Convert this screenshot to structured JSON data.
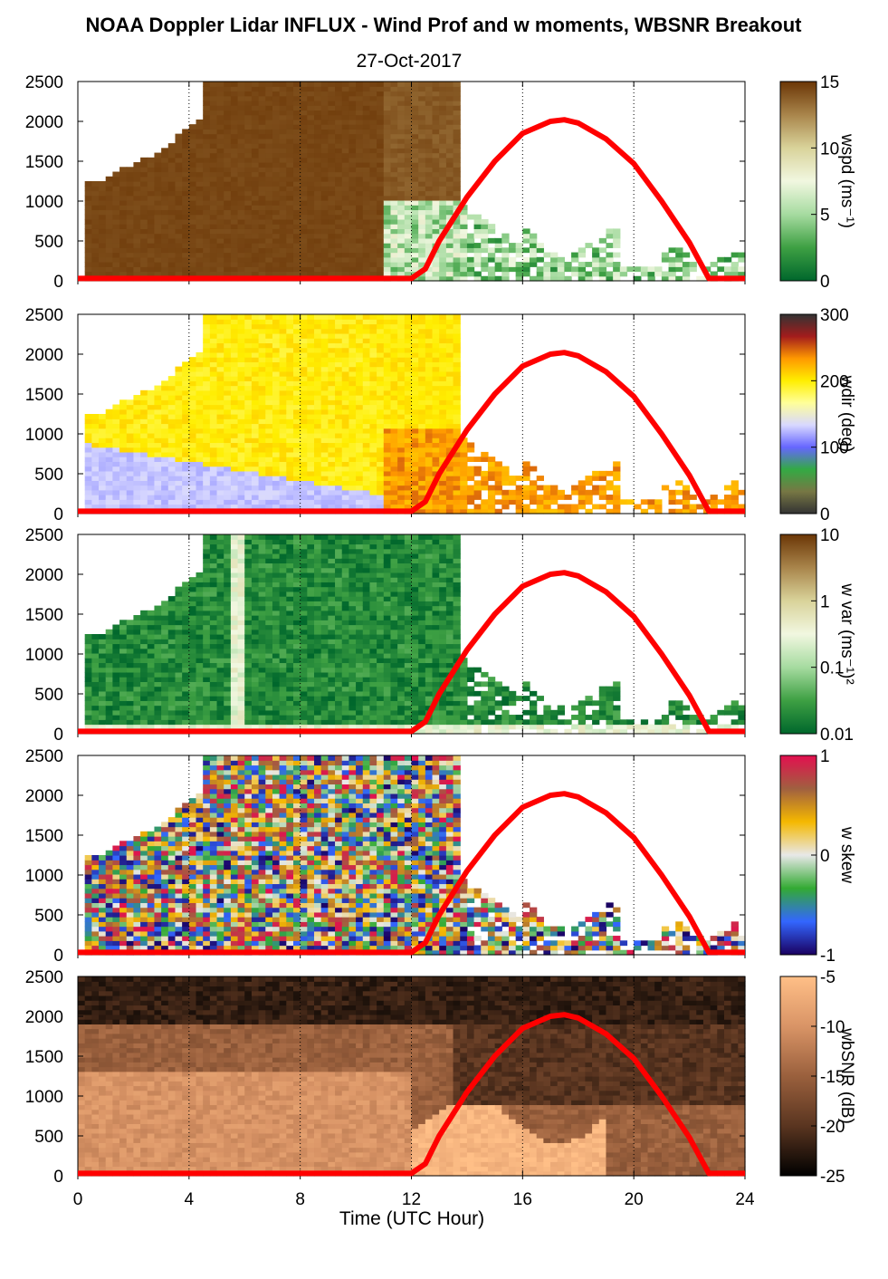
{
  "title": "NOAA Doppler Lidar INFLUX - Wind Prof and w moments, WBSNR Breakout",
  "subtitle": "27-Oct-2017",
  "colors": {
    "sun_curve": "#ff0000"
  },
  "chart_data": {
    "type": "heatmap",
    "xlabel": "Time (UTC Hour)",
    "xlim": [
      0,
      24
    ],
    "x_ticks": [
      "0",
      "4",
      "8",
      "12",
      "16",
      "20",
      "24"
    ],
    "ylim": [
      0,
      2500
    ],
    "y_ticks": [
      "0",
      "500",
      "1000",
      "1500",
      "2000",
      "2500"
    ],
    "overlay": {
      "color": "#ff0000",
      "x": [
        0,
        12,
        12.5,
        13,
        14,
        15,
        16,
        17,
        17.5,
        18,
        19,
        20,
        21,
        22,
        22.7,
        24
      ],
      "y": [
        30,
        30,
        150,
        500,
        1050,
        1500,
        1850,
        2000,
        2020,
        1980,
        1780,
        1470,
        1000,
        480,
        30,
        30
      ]
    },
    "panels": [
      {
        "variable": "wspd",
        "colorbar_label": "wspd (ms⁻¹)",
        "colorbar_ticks": [
          "15",
          "10",
          "5",
          "0"
        ],
        "colorbar_colors": [
          "#6b3606",
          "#a9854b",
          "#d9d39a",
          "#f1f7e0",
          "#a6dba0",
          "#3ea043",
          "#00672c"
        ]
      },
      {
        "variable": "wdir",
        "colorbar_label": "wdir (deg)",
        "colorbar_ticks": [
          "300",
          "200",
          "100",
          "0"
        ],
        "colorbar_colors": [
          "#333333",
          "#a31c1c",
          "#ff9900",
          "#ffee00",
          "#ffff99",
          "#d8d8ff",
          "#6666ff",
          "#33aa44",
          "#777744",
          "#333333"
        ]
      },
      {
        "variable": "w var",
        "colorbar_label": "w var (ms⁻¹)²",
        "colorbar_ticks": [
          "10",
          "1",
          "0.1",
          "0.01"
        ],
        "colorbar_colors": [
          "#6b3606",
          "#a9854b",
          "#d9d39a",
          "#f1f7e0",
          "#a6dba0",
          "#3ea043",
          "#00672c"
        ]
      },
      {
        "variable": "w skew",
        "colorbar_label": "w skew",
        "colorbar_ticks": [
          "1",
          "0",
          "-1"
        ],
        "colorbar_colors": [
          "#e30f4f",
          "#a06040",
          "#f5b800",
          "#e8e8e8",
          "#33aa33",
          "#3366ff",
          "#1a0060"
        ]
      },
      {
        "variable": "wbSNR",
        "colorbar_label": "wbSNR (dB)",
        "colorbar_ticks": [
          "-5",
          "-10",
          "-15",
          "-20",
          "-25"
        ],
        "colorbar_colors": [
          "#ffbf87",
          "#d99466",
          "#9a603d",
          "#5a3520",
          "#000000"
        ]
      }
    ]
  }
}
